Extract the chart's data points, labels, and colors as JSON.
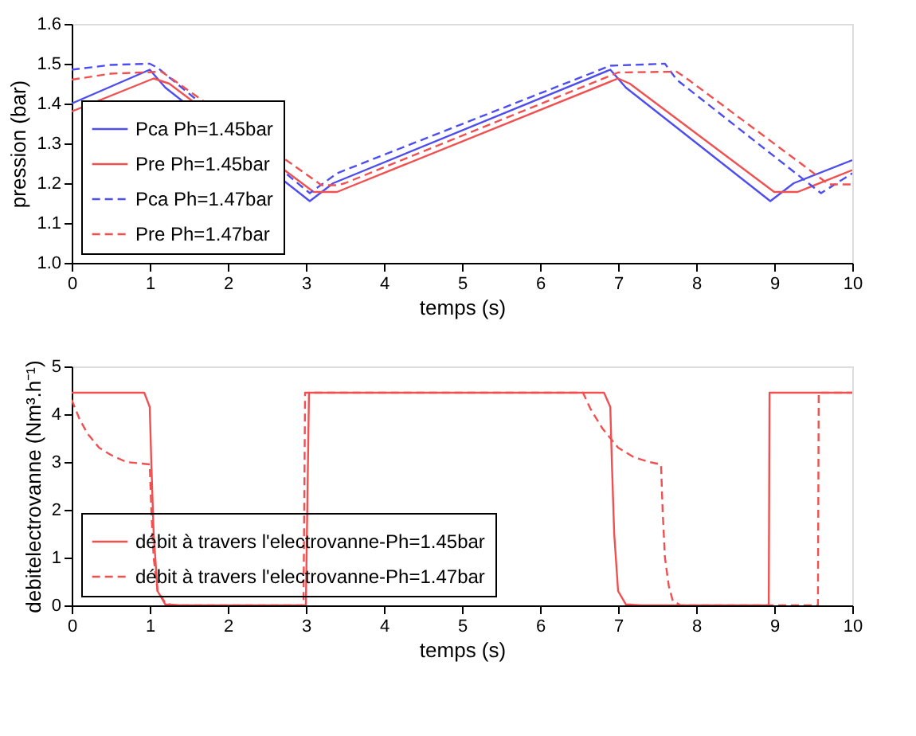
{
  "chart_data": [
    {
      "type": "line",
      "xlabel": "temps (s)",
      "ylabel": "pression (bar)",
      "xlim": [
        0,
        10
      ],
      "xticks": [
        0,
        1,
        2,
        3,
        4,
        5,
        6,
        7,
        8,
        9,
        10
      ],
      "ylim": [
        1,
        1.6
      ],
      "yticks": [
        {
          "value": 1,
          "label": "1.0"
        },
        1.1,
        1.2,
        1.3,
        1.4,
        1.5,
        1.6
      ],
      "grid": false,
      "legend": "bottom left",
      "series": [
        {
          "name": "Pca Ph=1.45bar",
          "color": "#4d4df0",
          "line_style": "solid",
          "x": [
            0,
            1,
            1.2,
            3.05,
            3.35,
            6.9,
            7.1,
            8.95,
            9.25,
            10
          ],
          "values": [
            1.4,
            1.485,
            1.44,
            1.155,
            1.2,
            1.485,
            1.44,
            1.155,
            1.2,
            1.258
          ]
        },
        {
          "name": "Pre Ph=1.45bar",
          "color": "#f05050",
          "line_style": "solid",
          "x": [
            0,
            1.05,
            1.25,
            3.1,
            3.4,
            3.55,
            7.0,
            7.15,
            9.0,
            9.3,
            10
          ],
          "values": [
            1.38,
            1.463,
            1.45,
            1.178,
            1.178,
            1.19,
            1.463,
            1.45,
            1.178,
            1.178,
            1.233
          ]
        },
        {
          "name": "Pca Ph=1.47bar",
          "color": "#4d4df0",
          "line_style": "dashed",
          "x": [
            0,
            0.5,
            1.0,
            1.1,
            3.05,
            3.4,
            6.9,
            7.6,
            7.75,
            9.6,
            10
          ],
          "values": [
            1.485,
            1.497,
            1.5,
            1.49,
            1.175,
            1.225,
            1.495,
            1.5,
            1.46,
            1.175,
            1.225
          ]
        },
        {
          "name": "Pre Ph=1.47bar",
          "color": "#f05050",
          "line_style": "dashed",
          "x": [
            0,
            0.5,
            1.15,
            1.3,
            3.2,
            3.4,
            3.5,
            7.0,
            7.75,
            7.9,
            9.7,
            10
          ],
          "values": [
            1.46,
            1.475,
            1.48,
            1.46,
            1.195,
            1.195,
            1.2,
            1.478,
            1.48,
            1.46,
            1.197,
            1.197
          ]
        }
      ]
    },
    {
      "type": "line",
      "xlabel": "temps (s)",
      "ylabel": "debitelectrovanne (Nm³.h⁻¹)",
      "xlim": [
        0,
        10
      ],
      "xticks": [
        0,
        1,
        2,
        3,
        4,
        5,
        6,
        7,
        8,
        9,
        10
      ],
      "ylim": [
        0,
        5
      ],
      "yticks": [
        0,
        1,
        2,
        3,
        4,
        5
      ],
      "grid": false,
      "legend": "bottom left",
      "series": [
        {
          "name": "débit à travers l'electrovanne-Ph=1.45bar",
          "color": "#f05050",
          "line_style": "solid",
          "x": [
            0,
            0.93,
            1.0,
            1.02,
            1.05,
            1.1,
            1.2,
            1.4,
            3.0,
            3.04,
            6.82,
            6.9,
            6.92,
            6.95,
            7.0,
            7.1,
            7.3,
            8.93,
            8.94,
            10
          ],
          "values": [
            4.45,
            4.45,
            4.15,
            3.0,
            1.5,
            0.3,
            0.02,
            0,
            0,
            4.45,
            4.45,
            4.15,
            3.0,
            1.5,
            0.3,
            0.02,
            0,
            0,
            4.45,
            4.45
          ]
        },
        {
          "name": "débit à travers l'electrovanne-Ph=1.47bar",
          "color": "#f05050",
          "line_style": "dashed",
          "x": [
            0,
            0.1,
            0.2,
            0.35,
            0.5,
            0.7,
            1.0,
            1.02,
            1.05,
            1.1,
            1.2,
            1.3,
            2.97,
            2.99,
            6.55,
            6.65,
            6.8,
            7.0,
            7.2,
            7.4,
            7.55,
            7.57,
            7.6,
            7.65,
            7.7,
            7.8,
            9.56,
            9.57,
            10
          ],
          "values": [
            4.3,
            3.9,
            3.6,
            3.3,
            3.15,
            3.0,
            2.95,
            2.0,
            1.0,
            0.3,
            0.05,
            0,
            0,
            4.45,
            4.45,
            4.1,
            3.7,
            3.3,
            3.1,
            3.0,
            2.95,
            2.0,
            1.0,
            0.4,
            0.1,
            0,
            0,
            4.45,
            4.45
          ]
        }
      ]
    }
  ]
}
